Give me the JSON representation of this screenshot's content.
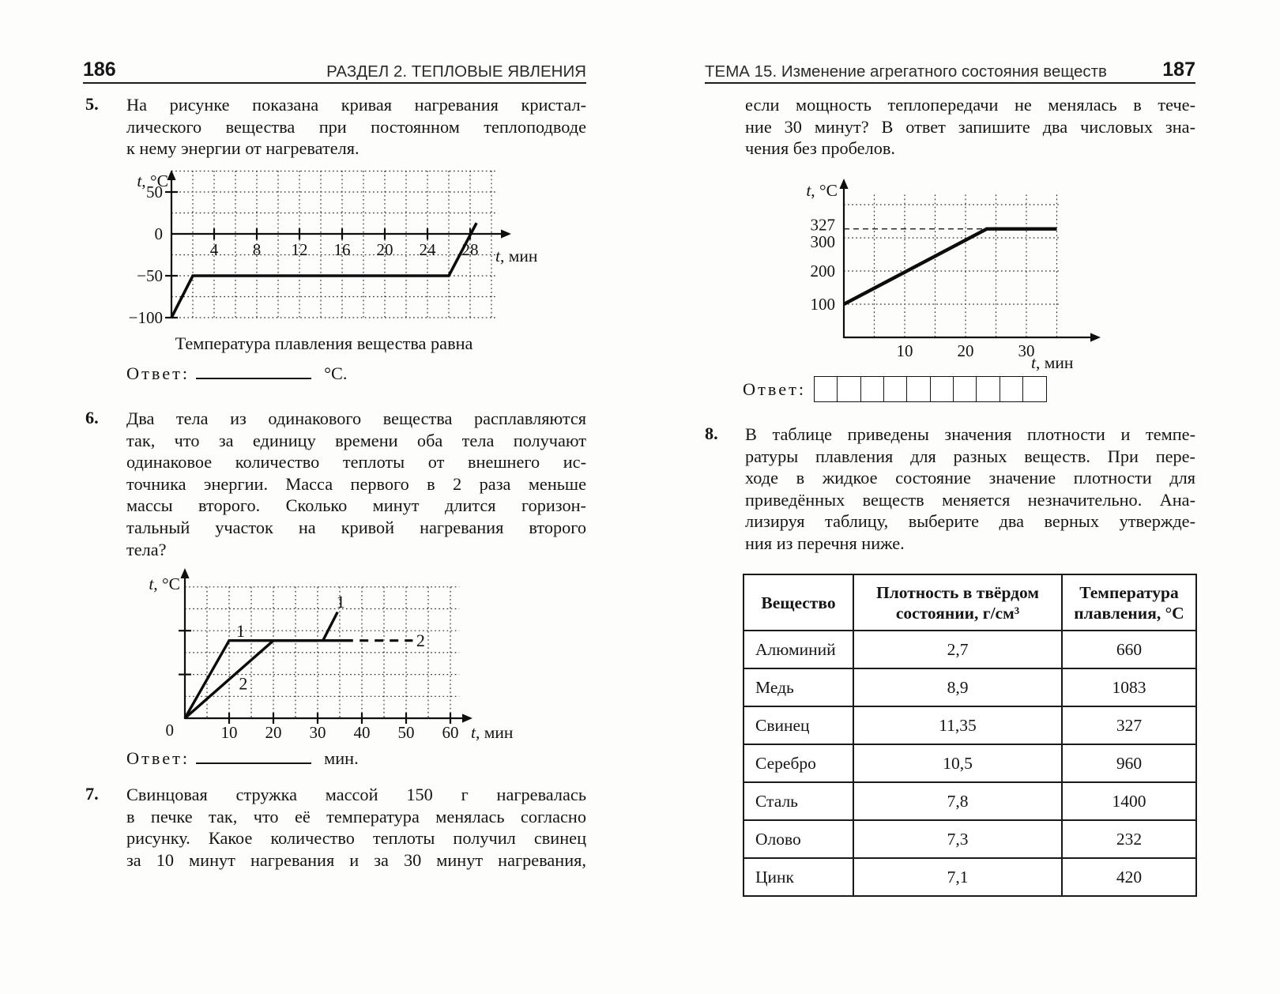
{
  "left_page": {
    "page_number": "186",
    "header": "РАЗДЕЛ 2. ТЕПЛОВЫЕ ЯВЛЕНИЯ",
    "problem5": {
      "number": "5.",
      "lines": [
        "На рисунке показана кривая нагревания кристал-",
        "лического вещества при постоянном теплоподводе",
        "к нему энергии от нагревателя."
      ],
      "caption": "Температура плавления вещества равна",
      "answer_label": "Ответ:",
      "answer_unit": "°С."
    },
    "problem6": {
      "number": "6.",
      "lines": [
        "Два тела из одинакового вещества расплавляются",
        "так, что за единицу времени оба тела получают",
        "одинаковое количество теплоты от внешнего ис-",
        "точника энергии. Масса первого в 2 раза меньше",
        "массы второго. Сколько минут длится горизон-",
        "тальный участок на кривой нагревания второго",
        "тела?"
      ],
      "answer_label": "Ответ:",
      "answer_unit": "мин."
    },
    "problem7": {
      "number": "7.",
      "lines": [
        "Свинцовая стружка массой 150 г нагревалась",
        "в печке так, что её температура менялась согласно",
        "рисунку. Какое количество теплоты получил свинец",
        "за 10 минут нагревания и за 30 минут нагревания,"
      ]
    }
  },
  "right_page": {
    "page_number": "187",
    "header": "ТЕМА 15. Изменение агрегатного состояния веществ",
    "problem7_continued": {
      "lines": [
        "если мощность теплопередачи не менялась в тече-",
        "ние 30 минут? В ответ запишите два числовых зна-",
        "чения без пробелов."
      ],
      "answer_label": "Ответ:",
      "answer_cells": 10
    },
    "problem8": {
      "number": "8.",
      "lines": [
        "В таблице приведены значения плотности и темпе-",
        "ратуры плавления для разных веществ. При пере-",
        "ходе в жидкое состояние значение плотности для",
        "приведённых веществ меняется незначительно. Ана-",
        "лизируя таблицу, выберите два верных утвержде-",
        "ния из перечня ниже."
      ]
    },
    "table": {
      "headers": [
        "Вещество",
        "Плотность в твёрдом состоянии, г/см³",
        "Температура плавления, °С"
      ],
      "rows": [
        [
          "Алюминий",
          "2,7",
          "660"
        ],
        [
          "Медь",
          "8,9",
          "1083"
        ],
        [
          "Свинец",
          "11,35",
          "327"
        ],
        [
          "Серебро",
          "10,5",
          "960"
        ],
        [
          "Сталь",
          "7,8",
          "1400"
        ],
        [
          "Олово",
          "7,3",
          "232"
        ],
        [
          "Цинк",
          "7,1",
          "420"
        ]
      ]
    }
  },
  "chart_data": [
    {
      "id": "graph1",
      "type": "line",
      "title": "Кривая нагревания кристаллического вещества (задача 5)",
      "xlabel": "t, мин",
      "ylabel": "t, °C",
      "x_range": [
        0,
        30.4
      ],
      "y_range": [
        -100,
        75.2
      ],
      "x_grid_step": 2,
      "y_grid_step": 25,
      "x_ticks": [
        {
          "v": 4,
          "label": "4",
          "mark": true
        },
        {
          "v": 8,
          "label": "8",
          "mark": true
        },
        {
          "v": 12,
          "label": "12",
          "mark": true
        },
        {
          "v": 16,
          "label": "16",
          "mark": true
        },
        {
          "v": 20,
          "label": "20",
          "mark": true
        },
        {
          "v": 24,
          "label": "24",
          "mark": true
        },
        {
          "v": 28,
          "label": "28",
          "mark": true
        }
      ],
      "y_ticks": [
        {
          "v": 50,
          "label": "50",
          "mark": true
        },
        {
          "v": 0,
          "label": "0",
          "mark": false
        },
        {
          "v": -50,
          "label": "−50",
          "mark": true
        },
        {
          "v": -100,
          "label": "−100",
          "mark": true
        }
      ],
      "series": [
        {
          "name": "heating-curve",
          "points": [
            [
              0,
              -100
            ],
            [
              2,
              -50
            ],
            [
              26,
              -50
            ],
            [
              28.6,
              13
            ]
          ],
          "width": 3.6
        }
      ]
    },
    {
      "id": "graph2",
      "type": "line",
      "title": "Кривые нагревания двух тел (задача 6)",
      "xlabel": "t, мин",
      "ylabel": "t, °C",
      "origin_label": "0",
      "x_range": [
        0,
        62
      ],
      "y_range": [
        0,
        6
      ],
      "x_grid_step": 5,
      "y_grid_step": 1,
      "x_ticks": [
        {
          "v": 10,
          "label": "10",
          "mark": true
        },
        {
          "v": 20,
          "label": "20",
          "mark": true
        },
        {
          "v": 30,
          "label": "30",
          "mark": true
        },
        {
          "v": 40,
          "label": "40",
          "mark": true
        },
        {
          "v": 50,
          "label": "50",
          "mark": true
        },
        {
          "v": 60,
          "label": "60",
          "mark": true
        }
      ],
      "y_ticks": [
        {
          "v": 4,
          "label": "",
          "mark": true
        },
        {
          "v": 2,
          "label": "",
          "mark": true
        }
      ],
      "series": [
        {
          "name": "body-1-heating",
          "points": [
            [
              0,
              0
            ],
            [
              10,
              3.55
            ],
            [
              30,
              3.55
            ]
          ],
          "width": 3.4
        },
        {
          "name": "body-1-after-melting",
          "points": [
            [
              31.2,
              3.55
            ],
            [
              34.5,
              4.85
            ]
          ],
          "width": 3.4
        },
        {
          "name": "body-2-heating",
          "points": [
            [
              0,
              0
            ],
            [
              20,
              3.55
            ],
            [
              38,
              3.55
            ]
          ],
          "width": 3.4
        },
        {
          "name": "body-2-continuation",
          "points": [
            [
              39.5,
              3.55
            ],
            [
              51.5,
              3.55
            ]
          ],
          "width": 3.2,
          "dash": "11,8"
        }
      ],
      "labels": [
        {
          "text": "1",
          "x": 12.6,
          "y": 3.72
        },
        {
          "text": "2",
          "x": 13.2,
          "y": 1.32
        },
        {
          "text": "1",
          "x": 35.2,
          "y": 5.05
        },
        {
          "text": "2",
          "x": 52.3,
          "y": 3.28,
          "anchor": "start"
        }
      ]
    },
    {
      "id": "graph3",
      "type": "line",
      "title": "Нагревание свинцовой стружки (задача 7)",
      "xlabel": "t, мин",
      "ylabel": "t, °C",
      "x_range": [
        0,
        35.3
      ],
      "y_range": [
        0,
        430
      ],
      "x_grid_step": 5,
      "y_grid_step": 100,
      "x_ticks": [
        {
          "v": 10,
          "label": "10",
          "mark": false
        },
        {
          "v": 20,
          "label": "20",
          "mark": false
        },
        {
          "v": 30,
          "label": "30",
          "mark": false
        }
      ],
      "y_ticks": [
        {
          "v": 327,
          "label": "327",
          "mark": false,
          "dy": -5
        },
        {
          "v": 300,
          "label": "300",
          "mark": false,
          "dy": 5
        },
        {
          "v": 200,
          "label": "200",
          "mark": false
        },
        {
          "v": 100,
          "label": "100",
          "mark": false
        }
      ],
      "guides": [
        {
          "y": 327,
          "x1": 0,
          "x2": 23.5,
          "dash": "7,5"
        }
      ],
      "series": [
        {
          "name": "lead-heating",
          "points": [
            [
              0,
              100
            ],
            [
              23.5,
              327
            ],
            [
              35,
              327
            ]
          ],
          "width": 4.4
        }
      ]
    }
  ]
}
